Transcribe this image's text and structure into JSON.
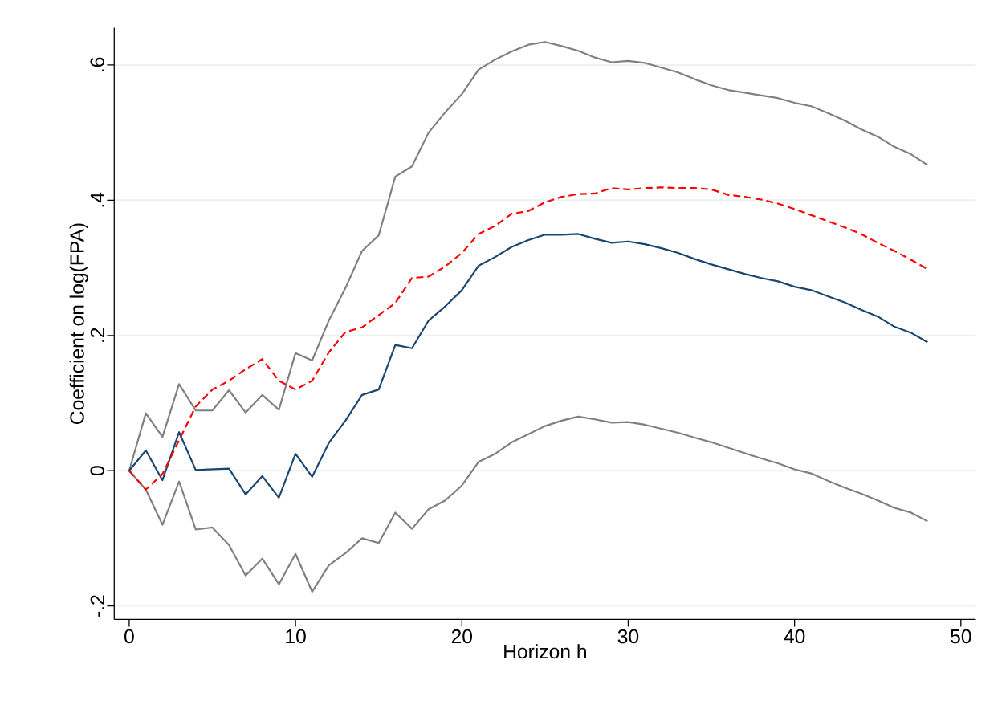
{
  "chart_data": {
    "type": "line",
    "xlabel": "Horizon h",
    "ylabel": "Coefficient on log(FPA)",
    "x": [
      0,
      1,
      2,
      3,
      4,
      5,
      6,
      7,
      8,
      9,
      10,
      11,
      12,
      13,
      14,
      15,
      16,
      17,
      18,
      19,
      20,
      21,
      22,
      23,
      24,
      25,
      26,
      27,
      28,
      29,
      30,
      31,
      32,
      33,
      34,
      35,
      36,
      37,
      38,
      39,
      40,
      41,
      42,
      43,
      44,
      45,
      46,
      47,
      48
    ],
    "series": [
      {
        "color": "#808080",
        "line_style": "solid",
        "values": [
          0,
          0.085,
          0.05,
          0.128,
          0.089,
          0.089,
          0.119,
          0.086,
          0.112,
          0.09,
          0.174,
          0.163,
          0.222,
          0.27,
          0.325,
          0.348,
          0.435,
          0.45,
          0.5,
          0.53,
          0.557,
          0.593,
          0.608,
          0.62,
          0.63,
          0.634,
          0.628,
          0.621,
          0.611,
          0.604,
          0.606,
          0.603,
          0.596,
          0.589,
          0.579,
          0.57,
          0.563,
          0.559,
          0.555,
          0.551,
          0.544,
          0.539,
          0.529,
          0.518,
          0.505,
          0.494,
          0.479,
          0.468,
          0.452
        ]
      },
      {
        "color": "#808080",
        "line_style": "solid",
        "values": [
          0,
          -0.028,
          -0.08,
          -0.016,
          -0.087,
          -0.084,
          -0.11,
          -0.155,
          -0.13,
          -0.168,
          -0.123,
          -0.179,
          -0.14,
          -0.122,
          -0.1,
          -0.107,
          -0.062,
          -0.086,
          -0.057,
          -0.044,
          -0.022,
          0.013,
          0.025,
          0.042,
          0.054,
          0.066,
          0.074,
          0.08,
          0.076,
          0.071,
          0.072,
          0.068,
          0.062,
          0.056,
          0.049,
          0.042,
          0.034,
          0.026,
          0.018,
          0.011,
          0.002,
          -0.004,
          -0.015,
          -0.025,
          -0.034,
          -0.044,
          -0.055,
          -0.062,
          -0.075
        ]
      },
      {
        "color": "#1a476f",
        "line_style": "solid",
        "values": [
          0,
          0.03,
          -0.014,
          0.057,
          0.001,
          0.002,
          0.003,
          -0.035,
          -0.008,
          -0.04,
          0.025,
          -0.009,
          0.041,
          0.074,
          0.112,
          0.12,
          0.186,
          0.181,
          0.222,
          0.243,
          0.267,
          0.303,
          0.316,
          0.331,
          0.341,
          0.349,
          0.349,
          0.35,
          0.343,
          0.337,
          0.339,
          0.335,
          0.329,
          0.322,
          0.313,
          0.305,
          0.298,
          0.291,
          0.285,
          0.28,
          0.272,
          0.267,
          0.258,
          0.249,
          0.238,
          0.228,
          0.213,
          0.204,
          0.19
        ]
      },
      {
        "color": "#ff0000",
        "line_style": "dashed",
        "values": [
          0,
          -0.028,
          -0.005,
          0.045,
          0.095,
          0.12,
          0.133,
          0.15,
          0.165,
          0.133,
          0.12,
          0.133,
          0.175,
          0.205,
          0.212,
          0.23,
          0.248,
          0.285,
          0.287,
          0.302,
          0.322,
          0.35,
          0.362,
          0.38,
          0.384,
          0.397,
          0.405,
          0.409,
          0.41,
          0.418,
          0.416,
          0.418,
          0.419,
          0.418,
          0.418,
          0.416,
          0.408,
          0.405,
          0.401,
          0.395,
          0.387,
          0.378,
          0.369,
          0.36,
          0.35,
          0.337,
          0.325,
          0.312,
          0.298
        ]
      }
    ],
    "xlim": [
      -0.9,
      50.9
    ],
    "ylim": [
      -0.22,
      0.655
    ],
    "xticks": [
      0,
      10,
      20,
      30,
      40,
      50
    ],
    "yticks": [
      {
        "value": -0.2,
        "label": "-.2"
      },
      {
        "value": 0,
        "label": "0"
      },
      {
        "value": 0.2,
        "label": ".2"
      },
      {
        "value": 0.4,
        "label": ".4"
      },
      {
        "value": 0.6,
        "label": ".6"
      }
    ],
    "grid": "y",
    "marker": "none"
  }
}
